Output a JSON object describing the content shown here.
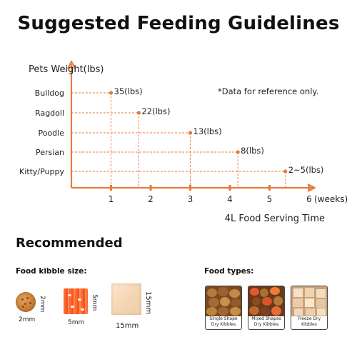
{
  "title": "Suggested Feeding Guidelines",
  "chart_data": {
    "type": "scatter",
    "ylabel": "Pets Weight(lbs)",
    "xlabel": "4L Food Serving Time",
    "x_unit": "(weeks)",
    "note": "*Data for reference only.",
    "xlim": [
      0,
      6
    ],
    "x_ticks": [
      "1",
      "2",
      "3",
      "4",
      "5",
      "6"
    ],
    "accent_color": "#e8793a",
    "points": [
      {
        "pet": "Bulldog",
        "x": 1.0,
        "label": "35(lbs)"
      },
      {
        "pet": "Ragdoll",
        "x": 1.7,
        "label": "22(lbs)"
      },
      {
        "pet": "Poodle",
        "x": 3.0,
        "label": "13(lbs)"
      },
      {
        "pet": "Persian",
        "x": 4.2,
        "label": "8(lbs)"
      },
      {
        "pet": "Kitty/Puppy",
        "x": 5.4,
        "label": "2~5(lbs)"
      }
    ]
  },
  "recommended": {
    "title": "Recommended",
    "kibble_title": "Food kibble size:",
    "kibbles": [
      {
        "name": "round",
        "width": "2mm",
        "height": "2mm"
      },
      {
        "name": "square",
        "width": "5mm",
        "height": "5mm"
      },
      {
        "name": "cube",
        "width": "15mm",
        "height": "15mm"
      }
    ],
    "types_title": "Food types:",
    "types": [
      {
        "line1": "Single Shape",
        "line2": "Dry Kibbles"
      },
      {
        "line1": "Mixed Shapes",
        "line2": "Dry Kibbles"
      },
      {
        "line1": "Freeze Dry",
        "line2": "Kibbles"
      }
    ]
  }
}
